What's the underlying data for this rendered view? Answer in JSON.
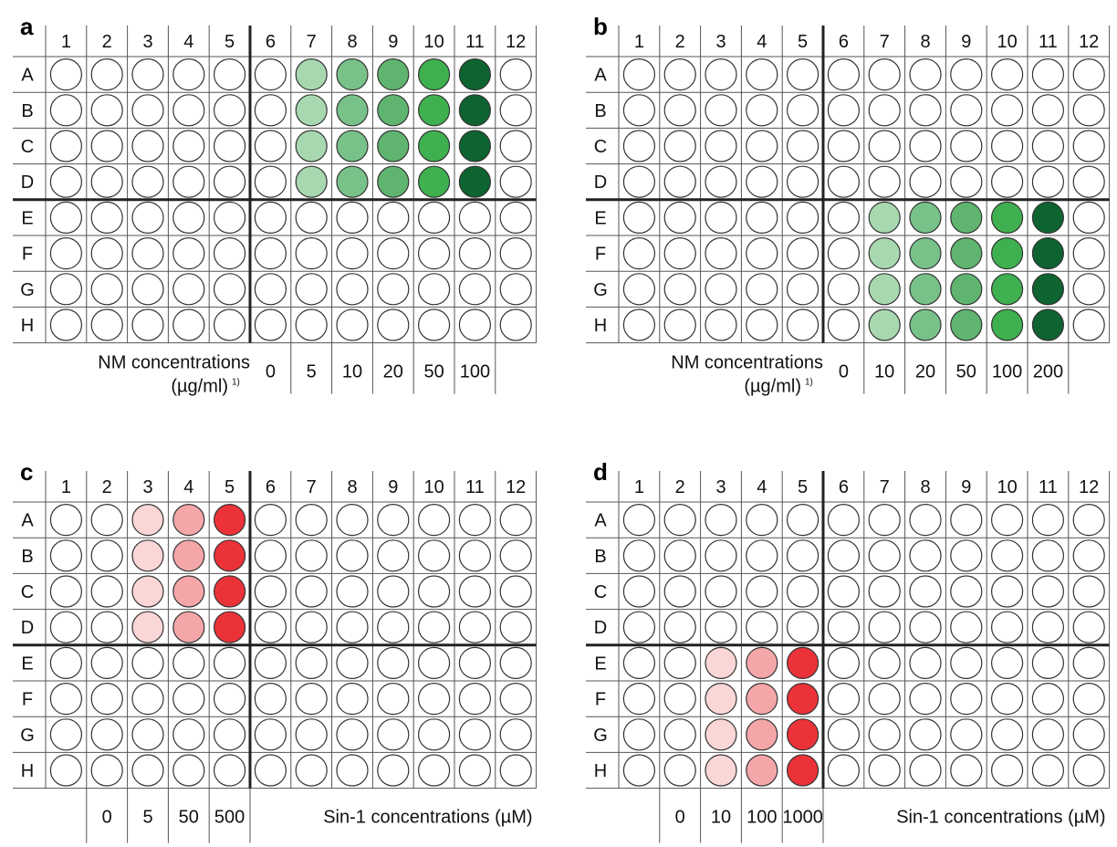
{
  "colors": {
    "empty": "#ffffff",
    "outline": "#333333",
    "green": [
      "#a8d8b0",
      "#78c28a",
      "#5fb56f",
      "#3fb04f",
      "#0d6430"
    ],
    "red": [
      "#fbd6d6",
      "#f4a6a8",
      "#ec3239"
    ]
  },
  "columns": [
    "1",
    "2",
    "3",
    "4",
    "5",
    "6",
    "7",
    "8",
    "9",
    "10",
    "11",
    "12"
  ],
  "rows": [
    "A",
    "B",
    "C",
    "D",
    "E",
    "F",
    "G",
    "H"
  ],
  "panels": [
    {
      "letter": "a",
      "caption_line1": "NM concentrations",
      "caption_line2": "(µg/ml)",
      "caption_note": "1)",
      "concentrations": [
        "0",
        "5",
        "10",
        "20",
        "50",
        "100"
      ],
      "filled_rows": [
        "A",
        "B",
        "C",
        "D"
      ],
      "filled_columns": [
        "7",
        "8",
        "9",
        "10",
        "11"
      ],
      "palette": "green"
    },
    {
      "letter": "b",
      "caption_line1": "NM concentrations",
      "caption_line2": "(µg/ml)",
      "caption_note": "1)",
      "concentrations": [
        "0",
        "10",
        "20",
        "50",
        "100",
        "200"
      ],
      "filled_rows": [
        "E",
        "F",
        "G",
        "H"
      ],
      "filled_columns": [
        "7",
        "8",
        "9",
        "10",
        "11"
      ],
      "palette": "green"
    },
    {
      "letter": "c",
      "caption_line1": "Sin-1 concentrations (µM)",
      "concentrations": [
        "0",
        "5",
        "50",
        "500"
      ],
      "filled_rows": [
        "A",
        "B",
        "C",
        "D"
      ],
      "filled_columns": [
        "3",
        "4",
        "5"
      ],
      "palette": "red"
    },
    {
      "letter": "d",
      "caption_line1": "Sin-1 concentrations (µM)",
      "concentrations": [
        "0",
        "10",
        "100",
        "1000"
      ],
      "filled_rows": [
        "E",
        "F",
        "G",
        "H"
      ],
      "filled_columns": [
        "3",
        "4",
        "5"
      ],
      "palette": "red"
    }
  ]
}
